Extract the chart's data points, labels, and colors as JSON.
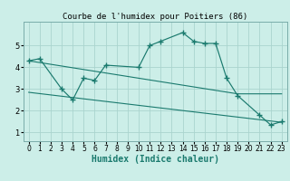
{
  "title": "Courbe de l'humidex pour Poitiers (86)",
  "xlabel": "Humidex (Indice chaleur)",
  "background_color": "#cceee8",
  "grid_color": "#aad4ce",
  "line_color": "#1a7a6e",
  "x_main": [
    0,
    1,
    3,
    4,
    5,
    6,
    7,
    10,
    11,
    12,
    14,
    15,
    16,
    17,
    18,
    19,
    21,
    22,
    23
  ],
  "y_main": [
    4.3,
    4.4,
    3.0,
    2.5,
    3.5,
    3.4,
    4.1,
    4.0,
    5.0,
    5.2,
    5.6,
    5.2,
    5.1,
    5.1,
    3.5,
    2.7,
    1.8,
    1.35,
    1.5
  ],
  "x_env": [
    0,
    1,
    2,
    3,
    4,
    5,
    6,
    7,
    8,
    9,
    10,
    11,
    12,
    13,
    14,
    15,
    16,
    17,
    18,
    19,
    20,
    21,
    22,
    23
  ],
  "y_env1": [
    4.3,
    4.22,
    4.14,
    4.06,
    3.98,
    3.9,
    3.82,
    3.74,
    3.66,
    3.58,
    3.5,
    3.42,
    3.34,
    3.26,
    3.18,
    3.1,
    3.02,
    2.94,
    2.86,
    2.78,
    2.78,
    2.78,
    2.78,
    2.78
  ],
  "y_env2": [
    2.85,
    2.79,
    2.73,
    2.67,
    2.61,
    2.55,
    2.49,
    2.43,
    2.37,
    2.31,
    2.25,
    2.19,
    2.13,
    2.07,
    2.01,
    1.95,
    1.89,
    1.83,
    1.77,
    1.71,
    1.65,
    1.59,
    1.53,
    1.47
  ],
  "ylim": [
    0.6,
    6.1
  ],
  "xlim": [
    -0.5,
    23.5
  ],
  "yticks": [
    1,
    2,
    3,
    4,
    5
  ],
  "xticks": [
    0,
    1,
    2,
    3,
    4,
    5,
    6,
    7,
    8,
    9,
    10,
    11,
    12,
    13,
    14,
    15,
    16,
    17,
    18,
    19,
    20,
    21,
    22,
    23
  ],
  "title_fontsize": 6.5,
  "label_fontsize": 7.0,
  "tick_fontsize": 5.5
}
